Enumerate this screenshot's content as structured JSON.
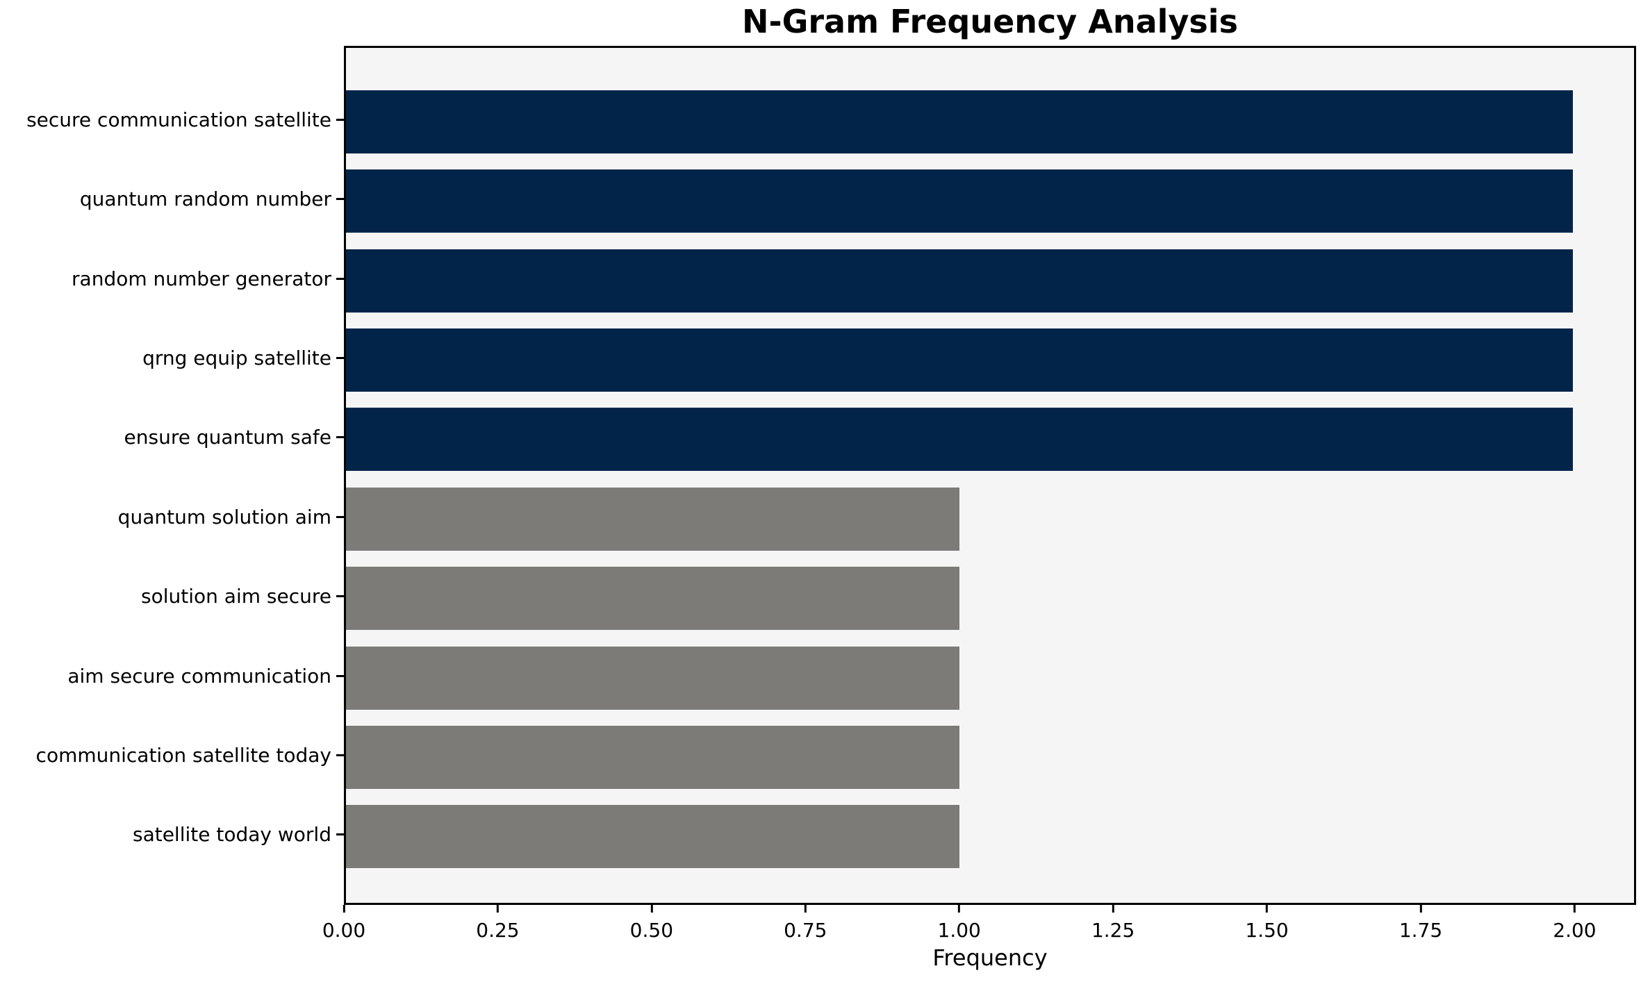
{
  "chart_data": {
    "type": "bar",
    "orientation": "horizontal",
    "title": "N-Gram Frequency Analysis",
    "xlabel": "Frequency",
    "ylabel": "",
    "categories": [
      "secure communication satellite",
      "quantum random number",
      "random number generator",
      "qrng equip satellite",
      "ensure quantum safe",
      "quantum solution aim",
      "solution aim secure",
      "aim secure communication",
      "communication satellite today",
      "satellite today world"
    ],
    "values": [
      2,
      2,
      2,
      2,
      2,
      1,
      1,
      1,
      1,
      1
    ],
    "bar_colors": [
      "#032449",
      "#032449",
      "#032449",
      "#032449",
      "#032449",
      "#7c7b78",
      "#7c7b78",
      "#7c7b78",
      "#7c7b78",
      "#7c7b78"
    ],
    "xlim": [
      0,
      2.1
    ],
    "xticks": {
      "values": [
        0,
        0.25,
        0.5,
        0.75,
        1.0,
        1.25,
        1.5,
        1.75,
        2.0
      ],
      "labels": [
        "0.00",
        "0.25",
        "0.50",
        "0.75",
        "1.00",
        "1.25",
        "1.50",
        "1.75",
        "2.00"
      ]
    },
    "grid": false,
    "legend_position": "none",
    "plot_background": "#f5f5f5",
    "figure_background": "#ffffff",
    "axis_color": "#000000"
  }
}
